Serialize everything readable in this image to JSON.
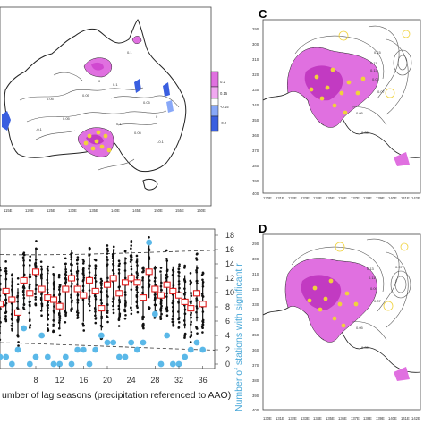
{
  "figure": {
    "panels": {
      "a": {
        "lon_ticks": [
          "115E",
          "120E",
          "125E",
          "130E",
          "135E",
          "140E",
          "145E",
          "150E",
          "155E",
          "160E"
        ],
        "colorbar_ticks": [
          "0.2",
          "0.15",
          "-0.15",
          "-0.2"
        ],
        "contour_labels": [
          "0.05",
          "0.05",
          "0.1",
          "0.05",
          "0.1",
          "0.05",
          "0.1",
          "0",
          "-0.1",
          "0.05",
          "0",
          "-0.1"
        ]
      },
      "b": {
        "xlabel": "umber of lag seasons (precipitation referenced to AAO)",
        "right_ylabel": "Number of stations with significant r",
        "x_ticks": [
          "8",
          "12",
          "16",
          "20",
          "24",
          "28",
          "32",
          "36"
        ],
        "right_y_ticks": [
          "18",
          "16",
          "14",
          "12",
          "10",
          "8",
          "6",
          "4",
          "2",
          "0"
        ]
      },
      "c": {
        "letter": "C",
        "lat_ticks": [
          "29S",
          "30S",
          "31S",
          "32S",
          "33S",
          "34S",
          "35S",
          "36S",
          "37S",
          "38S",
          "39S",
          "40S"
        ],
        "lon_ticks": [
          "130E",
          "131E",
          "132E",
          "133E",
          "134E",
          "135E",
          "136E",
          "137E",
          "138E",
          "139E",
          "140E",
          "141E",
          "142E"
        ],
        "contour_labels": [
          "0.11",
          "0.13",
          "0.15",
          "0.09",
          "0.07",
          "0.05",
          "0.05"
        ]
      },
      "d": {
        "letter": "D",
        "lat_ticks": [
          "29S",
          "30S",
          "31S",
          "32S",
          "33S",
          "34S",
          "35S",
          "36S",
          "37S",
          "38S",
          "39S",
          "40S"
        ],
        "lon_ticks": [
          "130E",
          "131E",
          "132E",
          "133E",
          "134E",
          "135E",
          "136E",
          "137E",
          "138E",
          "139E",
          "140E",
          "141E",
          "142E"
        ],
        "contour_labels": [
          "0.13",
          "0.11",
          "0.09",
          "0.07",
          "0.05",
          "0.05",
          "0.07"
        ]
      }
    },
    "colors": {
      "magenta": "#e070e0",
      "magenta_light": "#f0a8f0",
      "blue": "#3a5fe0",
      "blue_light": "#88a8f8",
      "yellow": "#f0d23c",
      "red": "#e02020",
      "cyan": "#5ab8e8"
    },
    "chart_data": {
      "type": "scatter",
      "x_range": [
        2,
        38
      ],
      "right_ylim": [
        0,
        18
      ],
      "left_ylim": [
        -0.3,
        0.3
      ],
      "series": [
        {
          "values": [
            1,
            1,
            1,
            0,
            2,
            5,
            0,
            1,
            4,
            1,
            0,
            0,
            1,
            0,
            2,
            2,
            0,
            2,
            4,
            3,
            3,
            1,
            1,
            3,
            2,
            3,
            17,
            7,
            0,
            4,
            0,
            0,
            1,
            2,
            3,
            2
          ]
        }
      ],
      "boxes": [
        0.1,
        -0.02,
        0.04,
        0.0,
        -0.06,
        0.09,
        0.03,
        0.13,
        0.05,
        0.01,
        0.0,
        -0.03,
        0.05,
        0.1,
        0.05,
        0.02,
        0.09,
        0.04,
        -0.04,
        0.07,
        0.1,
        0.03,
        0.08,
        0.1,
        0.08,
        0.01,
        0.13,
        0.05,
        0.02,
        0.07,
        0.04,
        0.02,
        -0.01,
        -0.04,
        0.03,
        -0.02
      ]
    }
  }
}
